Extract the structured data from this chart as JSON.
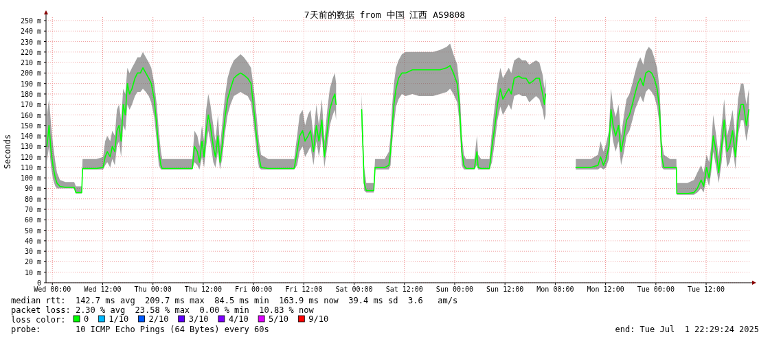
{
  "chart_data": {
    "type": "line",
    "title": "7天前的数据 from 中国 江西 AS9808",
    "ylabel": "Seconds",
    "legend_title": "loss color:",
    "legend": "bottom",
    "grid": true,
    "xlim": [
      "2025-06-24T22:29",
      "2025-07-01T22:29"
    ],
    "xticks": [
      {
        "value": "2025-06-25T00:00",
        "label": "Wed 00:00"
      },
      {
        "value": "2025-06-25T12:00",
        "label": "Wed 12:00"
      },
      {
        "value": "2025-06-26T00:00",
        "label": "Thu 00:00"
      },
      {
        "value": "2025-06-26T12:00",
        "label": "Thu 12:00"
      },
      {
        "value": "2025-06-27T00:00",
        "label": "Fri 00:00"
      },
      {
        "value": "2025-06-27T12:00",
        "label": "Fri 12:00"
      },
      {
        "value": "2025-06-28T00:00",
        "label": "Sat 00:00"
      },
      {
        "value": "2025-06-28T12:00",
        "label": "Sat 12:00"
      },
      {
        "value": "2025-06-29T00:00",
        "label": "Sun 00:00"
      },
      {
        "value": "2025-06-29T12:00",
        "label": "Sun 12:00"
      },
      {
        "value": "2025-06-30T00:00",
        "label": "Mon 00:00"
      },
      {
        "value": "2025-06-30T12:00",
        "label": "Mon 12:00"
      },
      {
        "value": "2025-07-01T00:00",
        "label": "Tue 00:00"
      },
      {
        "value": "2025-07-01T12:00",
        "label": "Tue 12:00"
      }
    ],
    "ylim": [
      0,
      250
    ],
    "yticks": [
      0,
      {
        "value": 10,
        "label": "10 m"
      },
      {
        "value": 20,
        "label": "20 m"
      },
      {
        "value": 30,
        "label": "30 m"
      },
      {
        "value": 40,
        "label": "40 m"
      },
      {
        "value": 50,
        "label": "50 m"
      },
      {
        "value": 60,
        "label": "60 m"
      },
      {
        "value": 70,
        "label": "70 m"
      },
      {
        "value": 80,
        "label": "80 m"
      },
      {
        "value": 90,
        "label": "90 m"
      },
      {
        "value": 100,
        "label": "100 m"
      },
      {
        "value": 110,
        "label": "110 m"
      },
      {
        "value": 120,
        "label": "120 m"
      },
      {
        "value": 130,
        "label": "130 m"
      },
      {
        "value": 140,
        "label": "140 m"
      },
      {
        "value": 150,
        "label": "150 m"
      },
      {
        "value": 160,
        "label": "160 m"
      },
      {
        "value": 170,
        "label": "170 m"
      },
      {
        "value": 180,
        "label": "180 m"
      },
      {
        "value": 190,
        "label": "190 m"
      },
      {
        "value": 200,
        "label": "200 m"
      },
      {
        "value": 210,
        "label": "210 m"
      },
      {
        "value": 220,
        "label": "220 m"
      },
      {
        "value": 230,
        "label": "230 m"
      },
      {
        "value": 240,
        "label": "240 m"
      },
      {
        "value": 250,
        "label": "250 m"
      }
    ],
    "series": [
      {
        "name": "0",
        "color": "#00ff00",
        "x": [
          "2025-06-24T22:42",
          "2025-06-24T23:12",
          "2025-06-24T23:42",
          "2025-06-25T00:12",
          "2025-06-25T00:42",
          "2025-06-25T01:06",
          "2025-06-25T01:48",
          "2025-06-25T03:06",
          "2025-06-25T05:12",
          "2025-06-25T05:36",
          "2025-06-25T07:00",
          "2025-06-25T07:12",
          "2025-06-25T10:30",
          "2025-06-25T12:06",
          "2025-06-25T12:36",
          "2025-06-25T13:06",
          "2025-06-25T13:48",
          "2025-06-25T14:18",
          "2025-06-25T14:54",
          "2025-06-25T15:24",
          "2025-06-25T15:54",
          "2025-06-25T16:24",
          "2025-06-25T16:54",
          "2025-06-25T17:24",
          "2025-06-25T17:54",
          "2025-06-25T18:24",
          "2025-06-25T19:00",
          "2025-06-25T19:42",
          "2025-06-25T20:18",
          "2025-06-25T21:00",
          "2025-06-25T21:36",
          "2025-06-25T22:18",
          "2025-06-25T23:00",
          "2025-06-25T23:36",
          "2025-06-26T00:18",
          "2025-06-26T00:54",
          "2025-06-26T01:24",
          "2025-06-26T01:54",
          "2025-06-26T02:12",
          "2025-06-26T04:30",
          "2025-06-26T07:48",
          "2025-06-26T09:24",
          "2025-06-26T09:54",
          "2025-06-26T10:36",
          "2025-06-26T11:06",
          "2025-06-26T11:42",
          "2025-06-26T12:12",
          "2025-06-26T12:42",
          "2025-06-26T13:12",
          "2025-06-26T13:42",
          "2025-06-26T14:24",
          "2025-06-26T14:54",
          "2025-06-26T15:30",
          "2025-06-26T16:00",
          "2025-06-26T16:30",
          "2025-06-26T17:06",
          "2025-06-26T17:48",
          "2025-06-26T18:30",
          "2025-06-26T19:18",
          "2025-06-26T20:06",
          "2025-06-26T20:54",
          "2025-06-26T21:42",
          "2025-06-26T22:36",
          "2025-06-26T23:24",
          "2025-06-27T00:12",
          "2025-06-27T00:42",
          "2025-06-27T01:18",
          "2025-06-27T01:48",
          "2025-06-27T03:30",
          "2025-06-27T06:48",
          "2025-06-27T09:42",
          "2025-06-27T10:24",
          "2025-06-27T11:00",
          "2025-06-27T11:42",
          "2025-06-27T12:18",
          "2025-06-27T13:00",
          "2025-06-27T13:36",
          "2025-06-27T14:18",
          "2025-06-27T15:00",
          "2025-06-27T15:36",
          "2025-06-27T16:18",
          "2025-06-27T16:54",
          "2025-06-27T17:36",
          "2025-06-27T18:12",
          "2025-06-27T18:54",
          "2025-06-27T19:24",
          "2025-06-27T19:42",
          "2025-06-27T21:30",
          "2025-06-28T01:48",
          "2025-06-28T02:24",
          "2025-06-28T02:54",
          "2025-06-28T04:06",
          "2025-06-28T04:42",
          "2025-06-28T05:00",
          "2025-06-28T07:18",
          "2025-06-28T08:18",
          "2025-06-28T08:42",
          "2025-06-28T09:00",
          "2025-06-28T09:30",
          "2025-06-28T10:00",
          "2025-06-28T10:36",
          "2025-06-28T11:24",
          "2025-06-28T12:18",
          "2025-06-28T13:54",
          "2025-06-28T15:30",
          "2025-06-28T17:12",
          "2025-06-28T18:48",
          "2025-06-28T20:30",
          "2025-06-28T22:06",
          "2025-06-28T22:54",
          "2025-06-28T23:42",
          "2025-06-29T00:36",
          "2025-06-29T01:00",
          "2025-06-29T01:24",
          "2025-06-29T01:42",
          "2025-06-29T02:12",
          "2025-06-29T02:42",
          "2025-06-29T04:42",
          "2025-06-29T05:18",
          "2025-06-29T05:36",
          "2025-06-29T06:18",
          "2025-06-29T08:18",
          "2025-06-29T08:54",
          "2025-06-29T09:36",
          "2025-06-29T10:12",
          "2025-06-29T10:54",
          "2025-06-29T11:30",
          "2025-06-29T12:12",
          "2025-06-29T12:54",
          "2025-06-29T13:30",
          "2025-06-29T14:12",
          "2025-06-29T15:18",
          "2025-06-29T16:06",
          "2025-06-29T17:00",
          "2025-06-29T17:48",
          "2025-06-29T18:36",
          "2025-06-29T19:24",
          "2025-06-29T20:12",
          "2025-06-29T21:00",
          "2025-06-29T21:24",
          "2025-06-29T21:42",
          "2025-06-30T01:06",
          "2025-06-30T04:54",
          "2025-06-30T06:54",
          "2025-06-30T08:30",
          "2025-06-30T10:12",
          "2025-06-30T10:48",
          "2025-06-30T11:30",
          "2025-06-30T12:06",
          "2025-06-30T12:48",
          "2025-06-30T13:18",
          "2025-06-30T13:48",
          "2025-06-30T14:24",
          "2025-06-30T15:06",
          "2025-06-30T15:42",
          "2025-06-30T16:24",
          "2025-06-30T17:00",
          "2025-06-30T17:42",
          "2025-06-30T18:24",
          "2025-06-30T19:00",
          "2025-06-30T19:42",
          "2025-06-30T20:18",
          "2025-06-30T21:00",
          "2025-06-30T21:36",
          "2025-06-30T22:18",
          "2025-06-30T23:00",
          "2025-06-30T23:36",
          "2025-07-01T00:18",
          "2025-07-01T00:54",
          "2025-07-01T01:24",
          "2025-07-01T01:54",
          "2025-07-01T03:24",
          "2025-07-01T04:54",
          "2025-07-01T05:00",
          "2025-07-01T07:30",
          "2025-07-01T09:06",
          "2025-07-01T09:54",
          "2025-07-01T10:48",
          "2025-07-01T11:24",
          "2025-07-01T12:06",
          "2025-07-01T12:42",
          "2025-07-01T13:12",
          "2025-07-01T13:42",
          "2025-07-01T14:24",
          "2025-07-01T15:00",
          "2025-07-01T15:42",
          "2025-07-01T16:18",
          "2025-07-01T17:00",
          "2025-07-01T17:36",
          "2025-07-01T18:18",
          "2025-07-01T19:00",
          "2025-07-01T19:36",
          "2025-07-01T20:18",
          "2025-07-01T20:54",
          "2025-07-01T21:36",
          "2025-07-01T22:12"
        ],
        "values": [
          130,
          150,
          125,
          110,
          100,
          95,
          92,
          91,
          91,
          86,
          86,
          109,
          109,
          110,
          120,
          125,
          120,
          130,
          125,
          145,
          150,
          135,
          170,
          160,
          190,
          180,
          185,
          195,
          200,
          200,
          205,
          200,
          195,
          190,
          175,
          150,
          125,
          112,
          109,
          109,
          109,
          109,
          130,
          125,
          115,
          135,
          120,
          145,
          160,
          150,
          130,
          120,
          140,
          115,
          130,
          155,
          175,
          185,
          195,
          198,
          200,
          198,
          195,
          190,
          160,
          140,
          120,
          110,
          109,
          109,
          109,
          125,
          140,
          145,
          135,
          140,
          145,
          125,
          150,
          135,
          155,
          120,
          145,
          165,
          175,
          180,
          170,
          null,
          165,
          95,
          88,
          88,
          88,
          110,
          110,
          112,
          125,
          145,
          170,
          185,
          195,
          200,
          200,
          203,
          203,
          203,
          203,
          203,
          205,
          207,
          200,
          190,
          175,
          150,
          125,
          112,
          109,
          109,
          125,
          110,
          109,
          109,
          130,
          150,
          170,
          185,
          175,
          180,
          185,
          180,
          195,
          197,
          195,
          195,
          190,
          192,
          195,
          195,
          180,
          170,
          180,
          null,
          110,
          110,
          110,
          112,
          120,
          112,
          118,
          130,
          165,
          150,
          140,
          150,
          125,
          140,
          155,
          160,
          170,
          180,
          190,
          195,
          188,
          200,
          202,
          200,
          195,
          185,
          165,
          120,
          110,
          110,
          110,
          85,
          85,
          86,
          90,
          98,
          92,
          110,
          100,
          115,
          140,
          125,
          105,
          130,
          155,
          125,
          130,
          145,
          120,
          155,
          170,
          170,
          150,
          165
        ],
        "lower": [
          115,
          130,
          110,
          98,
          92,
          90,
          90,
          90,
          90,
          85,
          85,
          108,
          108,
          108,
          112,
          115,
          110,
          118,
          112,
          130,
          135,
          120,
          150,
          145,
          170,
          165,
          170,
          178,
          182,
          182,
          185,
          182,
          178,
          172,
          158,
          135,
          112,
          108,
          108,
          108,
          108,
          108,
          115,
          112,
          108,
          120,
          110,
          130,
          145,
          135,
          115,
          110,
          125,
          108,
          118,
          140,
          160,
          170,
          178,
          180,
          182,
          180,
          178,
          172,
          145,
          125,
          110,
          108,
          108,
          108,
          108,
          112,
          125,
          130,
          120,
          125,
          130,
          112,
          135,
          120,
          140,
          110,
          130,
          150,
          160,
          165,
          155,
          null,
          150,
          88,
          86,
          86,
          86,
          108,
          108,
          108,
          112,
          130,
          150,
          168,
          175,
          180,
          178,
          180,
          178,
          178,
          178,
          180,
          182,
          185,
          180,
          172,
          158,
          135,
          112,
          108,
          108,
          108,
          112,
          108,
          108,
          108,
          115,
          135,
          155,
          168,
          160,
          165,
          170,
          165,
          178,
          180,
          178,
          178,
          172,
          175,
          178,
          175,
          165,
          155,
          160,
          null,
          108,
          108,
          108,
          108,
          110,
          108,
          110,
          118,
          150,
          135,
          125,
          135,
          112,
          125,
          140,
          145,
          155,
          165,
          172,
          178,
          172,
          182,
          185,
          182,
          178,
          168,
          150,
          110,
          108,
          108,
          108,
          84,
          84,
          84,
          86,
          90,
          86,
          100,
          92,
          105,
          125,
          110,
          95,
          115,
          140,
          110,
          115,
          130,
          108,
          140,
          155,
          155,
          135,
          150
        ],
        "upper": [
          160,
          175,
          150,
          130,
          115,
          105,
          98,
          96,
          96,
          92,
          92,
          118,
          118,
          120,
          135,
          140,
          135,
          145,
          140,
          165,
          170,
          155,
          185,
          180,
          205,
          200,
          205,
          210,
          215,
          215,
          220,
          215,
          210,
          205,
          190,
          170,
          145,
          125,
          118,
          118,
          118,
          118,
          145,
          140,
          130,
          150,
          135,
          165,
          180,
          170,
          150,
          135,
          160,
          130,
          150,
          175,
          195,
          205,
          212,
          215,
          218,
          215,
          210,
          205,
          180,
          160,
          135,
          122,
          118,
          118,
          118,
          140,
          160,
          165,
          150,
          160,
          165,
          140,
          170,
          150,
          175,
          135,
          165,
          185,
          195,
          200,
          190,
          null,
          180,
          110,
          95,
          95,
          95,
          118,
          118,
          125,
          140,
          165,
          190,
          205,
          212,
          218,
          220,
          220,
          220,
          220,
          220,
          222,
          225,
          228,
          218,
          208,
          192,
          168,
          140,
          122,
          118,
          118,
          140,
          122,
          118,
          118,
          145,
          170,
          190,
          205,
          195,
          200,
          205,
          200,
          212,
          215,
          212,
          212,
          208,
          210,
          212,
          210,
          198,
          185,
          195,
          null,
          118,
          118,
          118,
          122,
          135,
          125,
          132,
          145,
          185,
          168,
          158,
          170,
          140,
          160,
          175,
          180,
          190,
          200,
          210,
          215,
          208,
          220,
          225,
          222,
          215,
          205,
          185,
          135,
          122,
          118,
          118,
          95,
          95,
          98,
          105,
          112,
          105,
          122,
          115,
          130,
          160,
          140,
          120,
          150,
          175,
          140,
          150,
          165,
          138,
          175,
          190,
          190,
          170,
          185
        ]
      },
      {
        "name": "1/10",
        "color": "#00b8ff"
      },
      {
        "name": "2/10",
        "color": "#0059ff"
      },
      {
        "name": "3/10",
        "color": "#5e00ff"
      },
      {
        "name": "4/10",
        "color": "#7e00ff"
      },
      {
        "name": "5/10",
        "color": "#dd00ff"
      },
      {
        "name": "9/10",
        "color": "#ff0000"
      }
    ],
    "annotations": [
      "median rtt:  142.7 ms avg  209.7 ms max  84.5 ms min  163.9 ms now  39.4 ms sd  3.6   am/s",
      "packet loss: 2.30 % avg  23.58 % max  0.00 % min  10.83 % now",
      "probe:       10 ICMP Echo Pings (64 Bytes) every 60s",
      "end: Tue Jul  1 22:29:24 2025"
    ]
  }
}
